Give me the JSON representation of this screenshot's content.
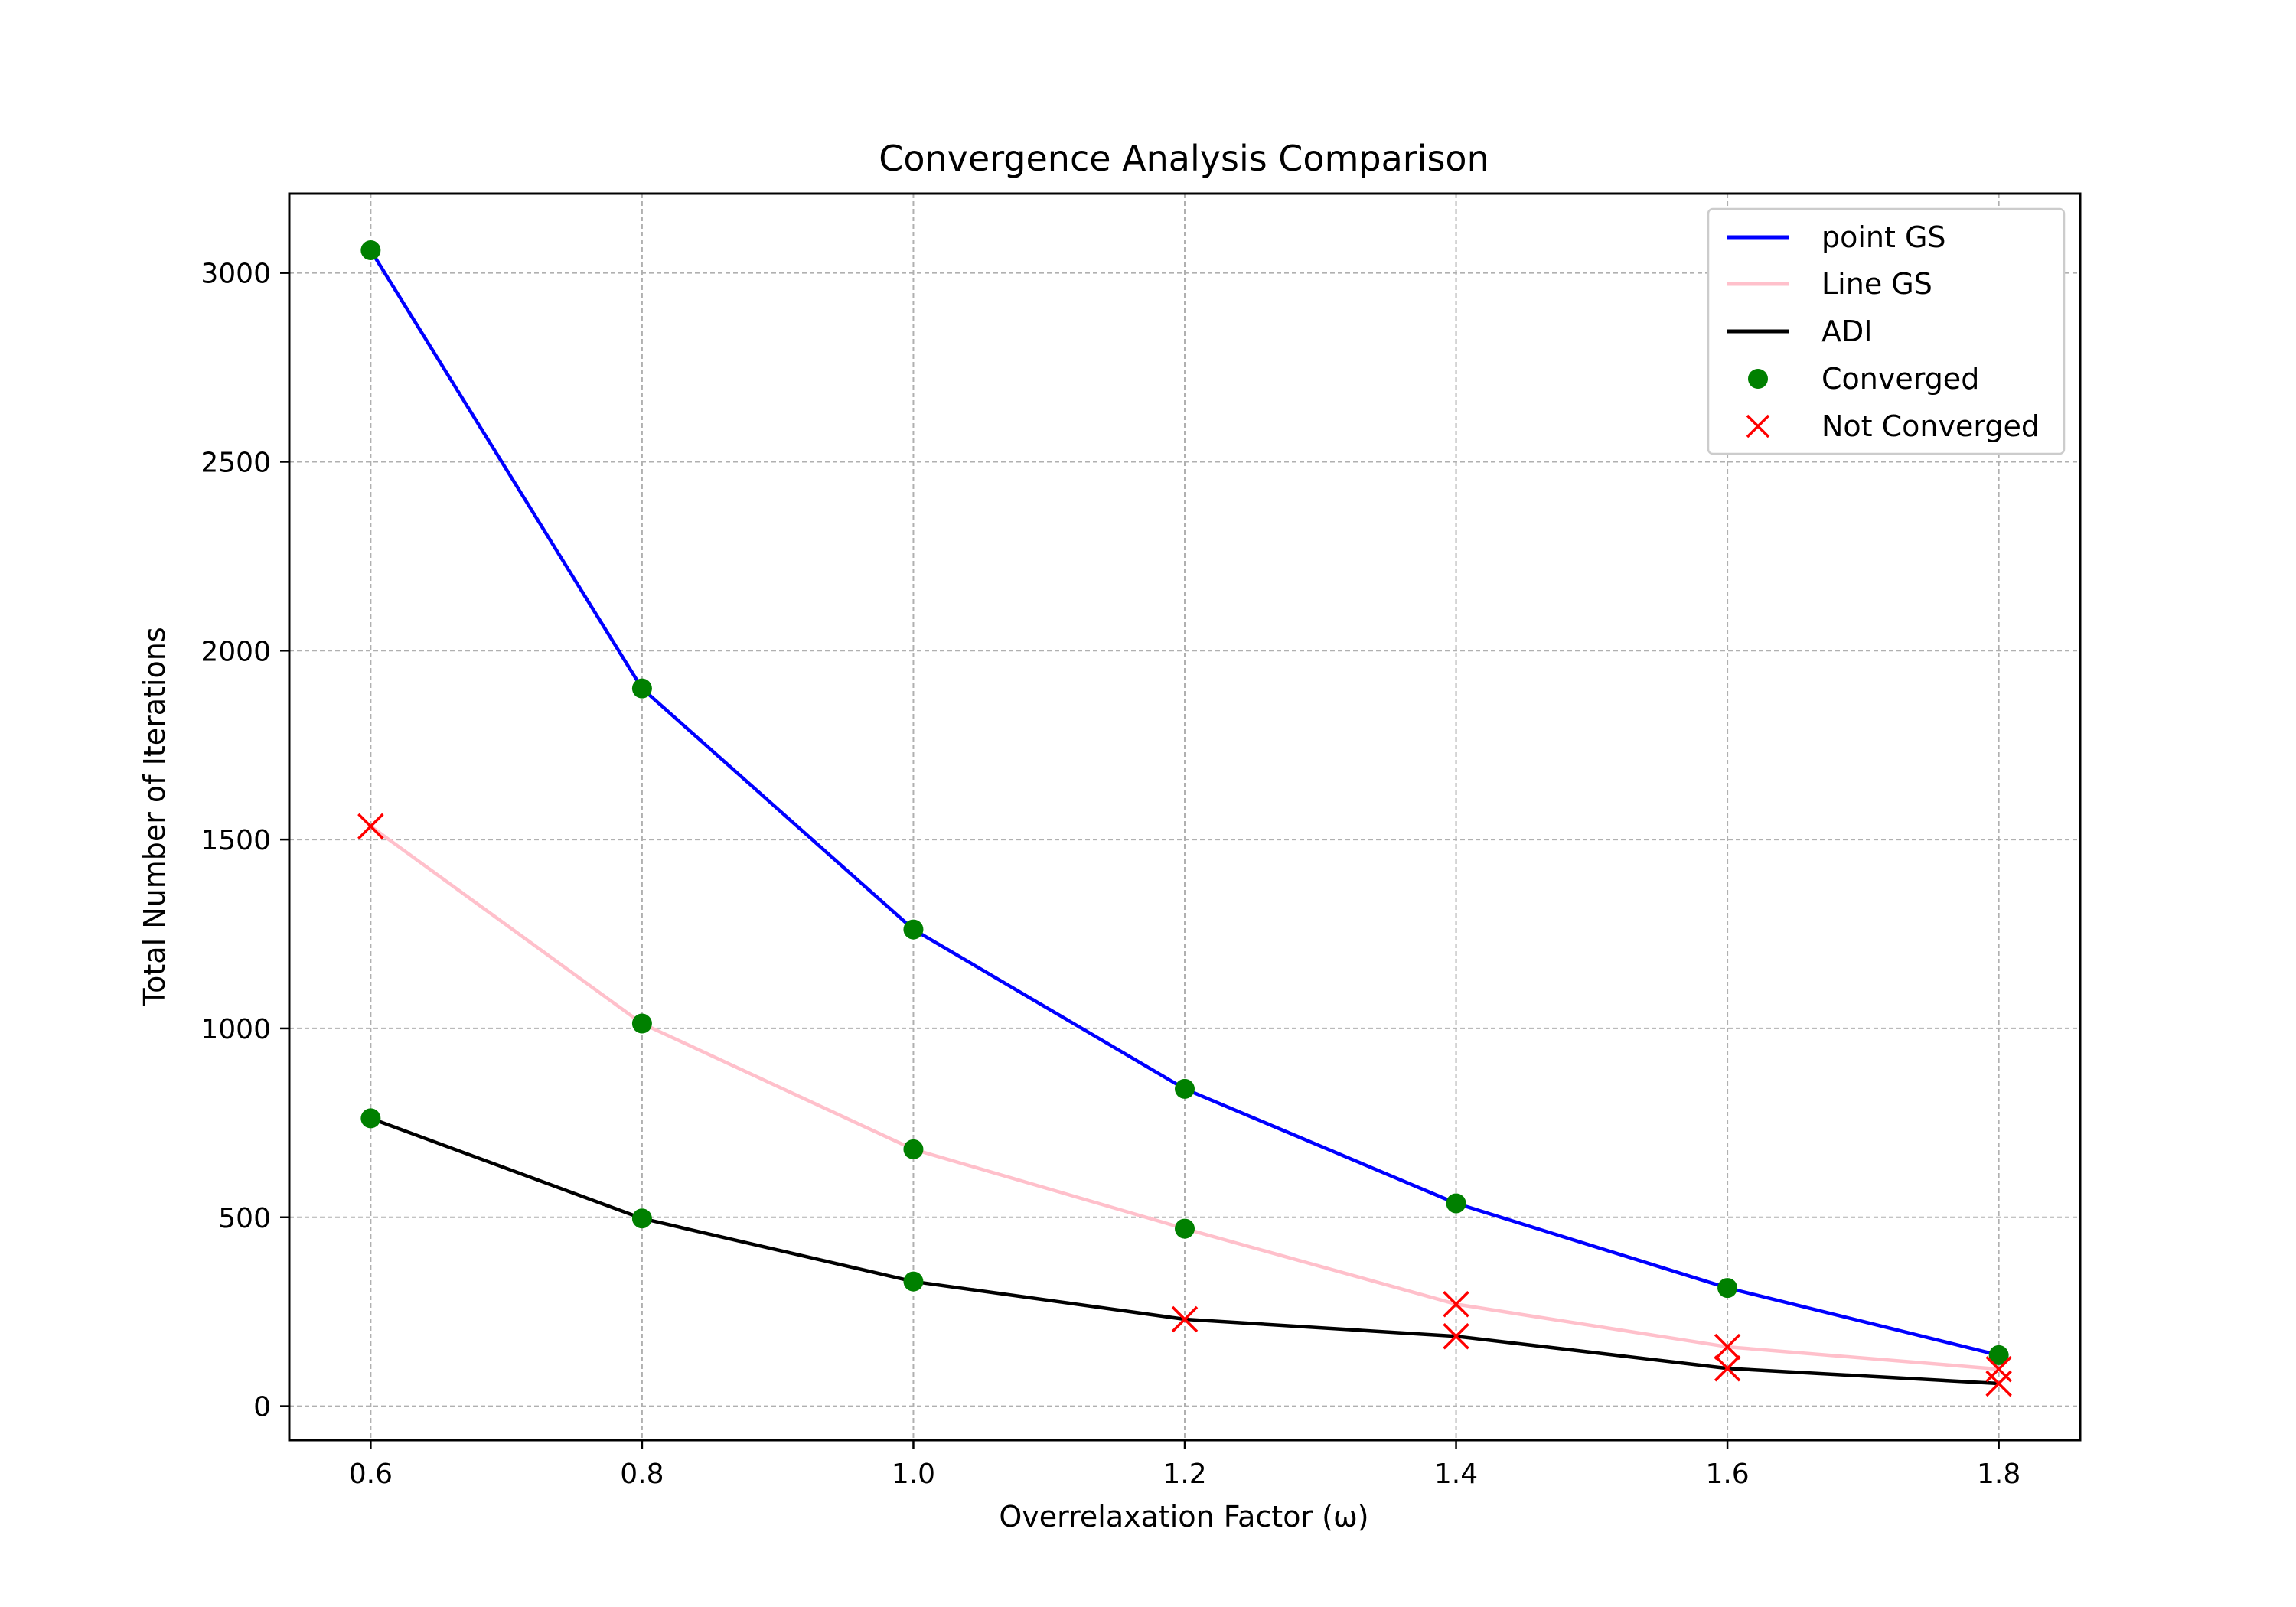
{
  "chart_data": {
    "type": "line",
    "title": "Convergence Analysis Comparison",
    "xlabel": "Overrelaxation Factor (ω)",
    "ylabel": "Total Number of Iterations",
    "xlim": [
      0.54,
      1.86
    ],
    "ylim": [
      -90,
      3210
    ],
    "xticks": [
      0.6,
      0.8,
      1.0,
      1.2,
      1.4,
      1.6,
      1.8
    ],
    "xtick_labels": [
      "0.6",
      "0.8",
      "1.0",
      "1.2",
      "1.4",
      "1.6",
      "1.8"
    ],
    "yticks": [
      0,
      500,
      1000,
      1500,
      2000,
      2500,
      3000
    ],
    "ytick_labels": [
      "0",
      "500",
      "1000",
      "1500",
      "2000",
      "2500",
      "3000"
    ],
    "grid": true,
    "legend_position": "top-right",
    "x": [
      0.6,
      0.8,
      1.0,
      1.2,
      1.4,
      1.6,
      1.8
    ],
    "series": [
      {
        "name": "point GS",
        "color": "#0000ff",
        "values": [
          3060,
          1900,
          1262,
          840,
          537,
          313,
          135
        ],
        "converged": [
          true,
          true,
          true,
          true,
          true,
          true,
          true
        ]
      },
      {
        "name": "Line GS",
        "color": "#ffc0cb",
        "values": [
          1535,
          1013,
          680,
          470,
          270,
          157,
          98
        ],
        "converged": [
          false,
          true,
          true,
          true,
          false,
          false,
          false
        ]
      },
      {
        "name": "ADI",
        "color": "#000000",
        "values": [
          762,
          497,
          330,
          230,
          185,
          100,
          60
        ],
        "converged": [
          true,
          true,
          true,
          false,
          false,
          false,
          false
        ]
      }
    ],
    "markers": {
      "converged": {
        "label": "Converged",
        "color": "#008000",
        "shape": "circle"
      },
      "not_converged": {
        "label": "Not Converged",
        "color": "#ff0000",
        "shape": "x"
      }
    }
  }
}
